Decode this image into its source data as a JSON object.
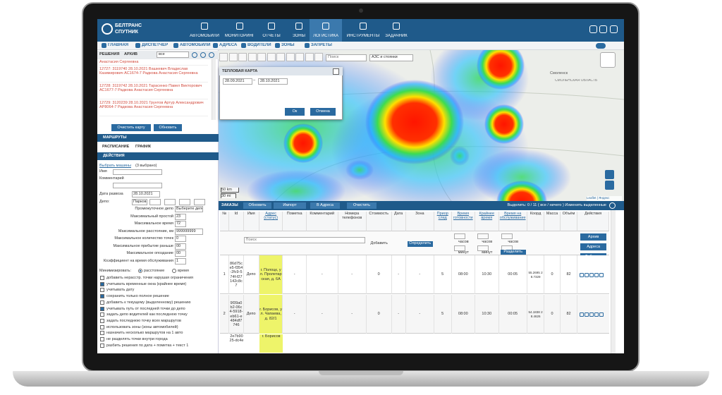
{
  "header": {
    "logo_line1": "БЕЛТРАНС",
    "logo_line2": "СПУТНИК",
    "menu": [
      "АВТОМОБИЛИ",
      "МОНИТОРИНГ",
      "ОТЧЕТЫ",
      "ЗОНЫ",
      "ЛОГИСТИКА",
      "ИНСТРУМЕНТЫ",
      "ЗАДАЧНИК"
    ],
    "active_menu": 4
  },
  "subnav": [
    "ГЛАВНАЯ",
    "ДИСПЕТЧЕР",
    "АВТОМОБИЛИ",
    "АДРЕСА",
    "ВОДИТЕЛИ",
    "ЗОНЫ",
    "ЗАПРЕТЫ"
  ],
  "left_panel": {
    "tabs": [
      "РЕШЕНИЯ",
      "АРХИВ"
    ],
    "filter": "все",
    "solutions": [
      "Анастасия Сергеевна",
      "12727: 3119740 28.10.2021 Вашкевич Владислав Казимирович АС1674-7 Радкова Анастасия Сергеевна",
      "12728: 3119742 28.10.2021 Тарасенко Павел Викторович АС1677-7 Радкова Анастасия Сергеевна",
      "12729: 3120239 28.10.2021 Грунтов Артур Александрович АР8064-7 Радкова Анастасия Сергеевна"
    ],
    "buttons": [
      "Очистить карту",
      "Обновить"
    ],
    "routes_title": "МАРШРУТЫ",
    "schedule_tabs": [
      "РАСПИСАНИЕ",
      "ГРАФИК"
    ],
    "actions_title": "ДЕЙСТВИЯ",
    "vehicles": {
      "link": "Выбрать машины",
      "count": "(3 выбрано)"
    },
    "fields": [
      {
        "label": "Имя"
      },
      {
        "label": "Комментарий"
      },
      {
        "label": "Дата развоза",
        "value": "28.10.2021"
      },
      {
        "label": "Депо:",
        "value": "Парков"
      },
      {
        "label": "Промежуточное депо",
        "value": "Выберите депо"
      },
      {
        "label": "Максимальный простой",
        "value": "23"
      },
      {
        "label": "Максимальное время",
        "value": "72"
      },
      {
        "label": "Максимальное расстояние, км",
        "value": "999999999"
      },
      {
        "label": "Максимальное количество точек",
        "value": "0"
      },
      {
        "label": "Максимальное прибытие раньше",
        "value": "00"
      },
      {
        "label": "Максимальное опоздание",
        "value": "00"
      },
      {
        "label": "Коэффициент на время обслуживания",
        "value": "1"
      }
    ],
    "minimize": {
      "label": "Минимизировать:",
      "options": [
        "расстояние",
        "время"
      ],
      "selected": 0
    },
    "checkboxes": [
      {
        "text": "добавить нерасстр. точки нарушая ограничения",
        "checked": false
      },
      {
        "text": "учитывать временные окна (крайнее время)",
        "checked": true
      },
      {
        "text": "учитывать дату",
        "checked": false
      },
      {
        "text": "сохранить только полное решение",
        "checked": true
      },
      {
        "text": "добавить к текущему (выделенному) решению",
        "checked": false
      },
      {
        "text": "учитывать путь от последней точки до депо",
        "checked": true
      },
      {
        "text": "задать депо водителей как последнюю точку",
        "checked": false
      },
      {
        "text": "задать последнюю точку всех маршрутов",
        "checked": false
      },
      {
        "text": "использовать зоны (зоны автомобилей)",
        "checked": false
      },
      {
        "text": "назначить несколько маршрутов на 1 авто",
        "checked": false
      },
      {
        "text": "не разделять точки внутри города",
        "checked": false
      },
      {
        "text": "разбить решения по дата + пометка + текст 1",
        "checked": false
      }
    ]
  },
  "map": {
    "search": "Поиск",
    "layer_select": "АЗС и стоянки",
    "labels": [
      "Смоленск",
      "СМОЛЕНСКАЯ ОБЛАСТЬ"
    ],
    "scale": [
      "50 km",
      "30 mi"
    ],
    "attribution": "Leaflet | Яндекс"
  },
  "dialog": {
    "title": "ТЕПЛОВАЯ КАРТА",
    "date_from": "28.09.2021",
    "separator": "–",
    "date_to": "28.10.2021",
    "ok": "Ок",
    "cancel": "Отмена"
  },
  "orders": {
    "title": "ЗАКАЗЫ",
    "buttons": [
      "Обновить",
      "Импорт",
      "В Адреса",
      "Очистить"
    ],
    "selection": "Выделить: 0 / 11 ( все / ничего ) Изменить выделенные",
    "headers": [
      "№",
      "Id",
      "Имя",
      "Адрес (статус)",
      "Пометка",
      "Комментарий",
      "Номера телефонов",
      "Стоимость",
      "Дата",
      "Зона",
      "Приор след",
      "Время готовности",
      "Крайнее время",
      "Время на обслуживание",
      "Коорд",
      "Масса",
      "Объём",
      "Действия"
    ],
    "filter": {
      "search": "Поиск",
      "cost_button": "Добавить",
      "zone_button": "Определить",
      "hours": "часов",
      "minutes": "минут",
      "split_button": "Разделить",
      "actions": [
        "Архив",
        "Адреса",
        "Добавить"
      ]
    },
    "rows": [
      [
        "1",
        "86d75ce5-f354-2fc9-574f-f27142c8c7",
        "Депо",
        "г. Полоцк, ул. Пролетарская, д. 6А",
        "-",
        "-",
        "-",
        "0",
        "-",
        "-",
        "5",
        "08:00",
        "10:30",
        "00:05",
        "55.2695 28.7329",
        "0",
        "82"
      ],
      [
        "2",
        "9f39a0b2-06c4-5918-eb61-e484df7746",
        "Депо",
        "г. Борисов, ул. Чапаева, д. 82/1",
        "-",
        "-",
        "-",
        "0",
        "-",
        "-",
        "5",
        "08:00",
        "10:30",
        "00:05",
        "54.1838 28.4626",
        "0",
        "82"
      ]
    ],
    "partial_row": {
      "id": "2e7b9025-dc4e",
      "address": "г. Борисов"
    }
  }
}
